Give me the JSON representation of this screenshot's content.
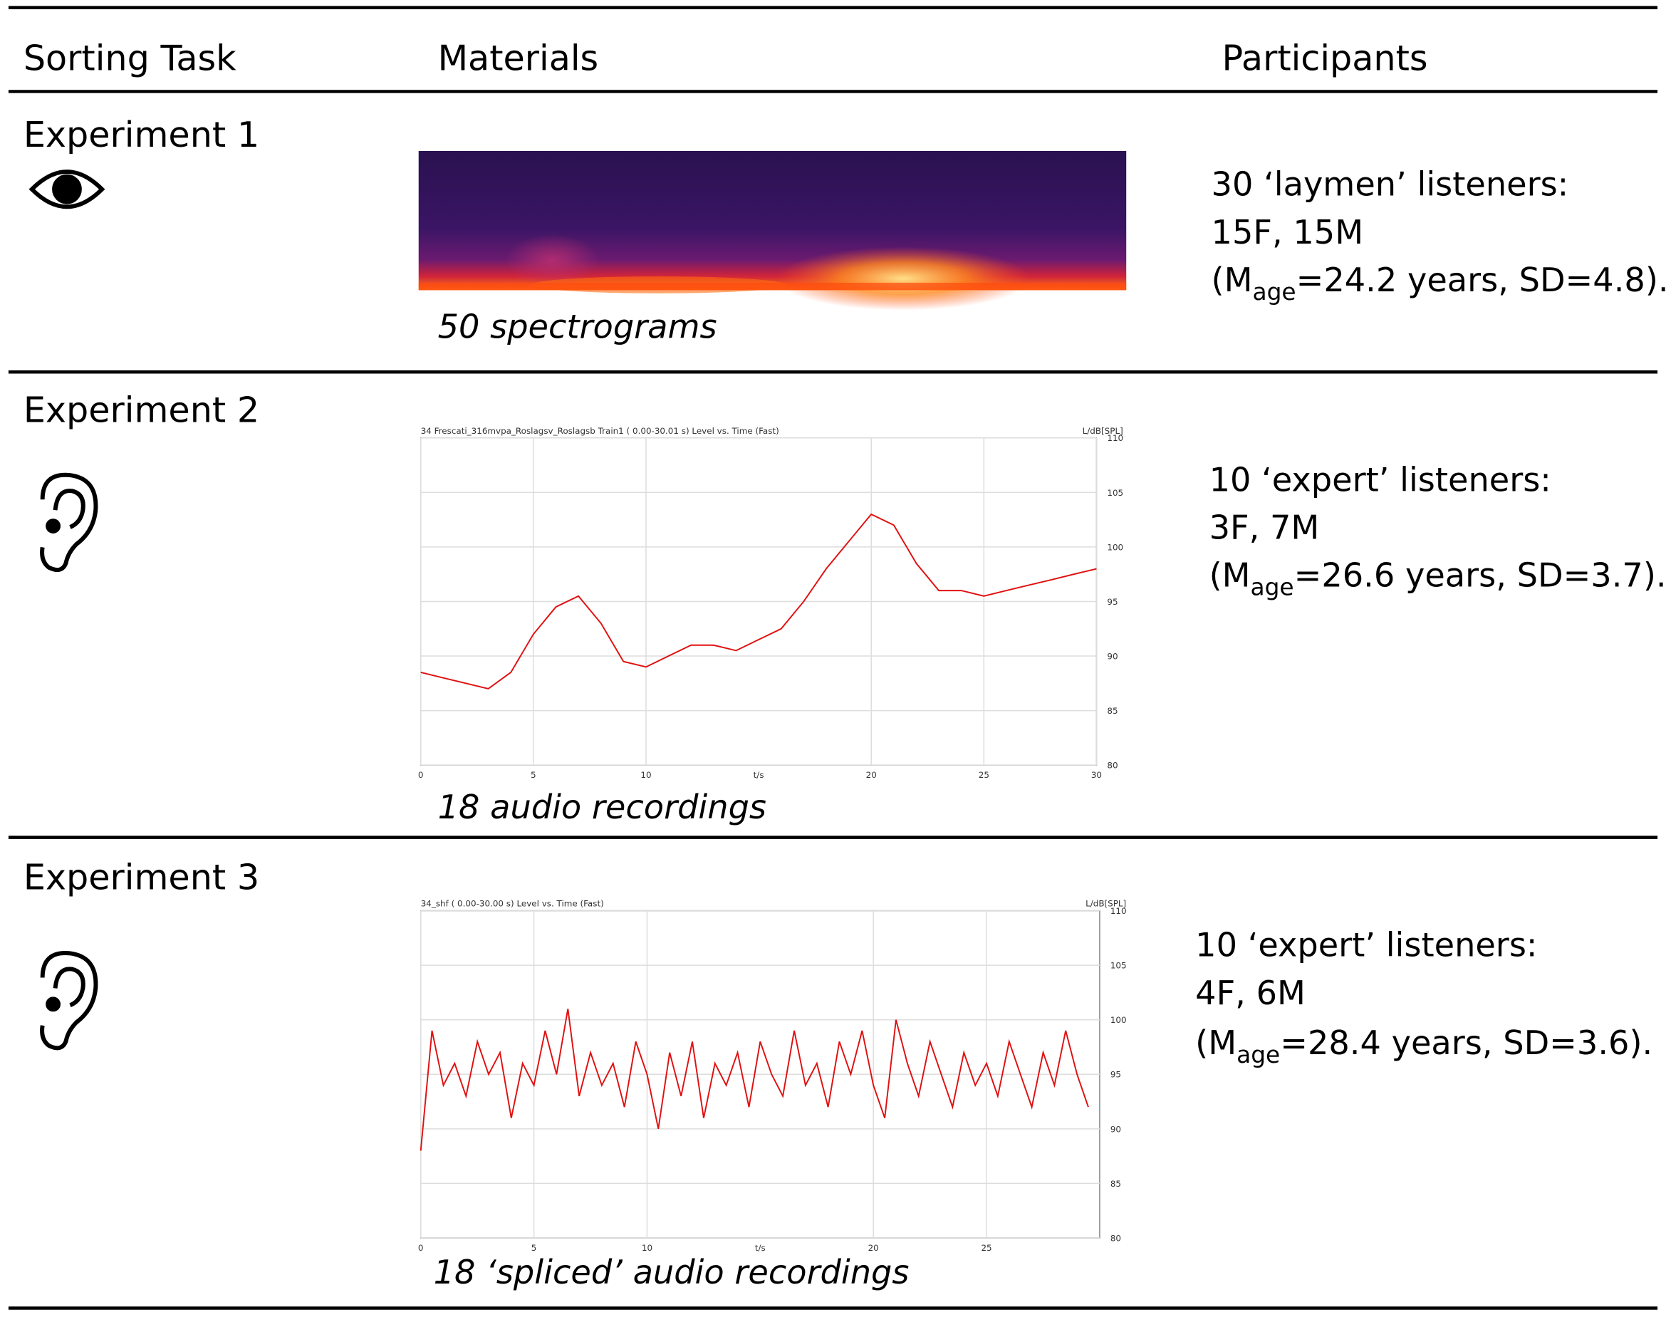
{
  "header": {
    "columns": [
      "Sorting Task",
      "Materials",
      "Participants"
    ]
  },
  "rows": [
    {
      "experiment": "Experiment 1",
      "material_caption": "50 spectrograms",
      "participants": {
        "line1": "30 ‘laymen’ listeners:",
        "line2": "15F, 15M",
        "line3_prefix": "(M",
        "line3_sub": "age",
        "line3_rest": "=24.2 years, SD=4.8)."
      }
    },
    {
      "experiment": "Experiment 2",
      "material_caption": "18 audio recordings",
      "chart": {
        "type": "line",
        "title": "34 Frescati_316mvpa_Roslagsv_Roslagsb Train1 ( 0.00-30.01 s) Level vs. Time (Fast)",
        "y_label": "L/dB[SPL]",
        "x_label": "t/s",
        "color": "#e01010",
        "xlim": [
          0,
          30
        ],
        "xticks": [
          0,
          5,
          10,
          20,
          25,
          30
        ],
        "ylim": [
          80,
          110
        ],
        "yticks": [
          80,
          85,
          90,
          95,
          100,
          105,
          110
        ],
        "x": [
          0,
          1,
          2,
          3,
          4,
          5,
          6,
          7,
          8,
          9,
          10,
          11,
          12,
          13,
          14,
          15,
          16,
          17,
          18,
          19,
          20,
          21,
          22,
          23,
          24,
          25,
          26,
          27,
          28,
          29,
          30
        ],
        "values": [
          88.5,
          88,
          87.5,
          87,
          88.5,
          92,
          94.5,
          95.5,
          93,
          89.5,
          89,
          90,
          91,
          91,
          90.5,
          91.5,
          92.5,
          95,
          98,
          100.5,
          103,
          102,
          98.5,
          96,
          96,
          95.5,
          96,
          96.5,
          97,
          97.5,
          98
        ]
      },
      "participants": {
        "line1": "10 ‘expert’ listeners:",
        "line2": "3F, 7M",
        "line3_prefix": "(M",
        "line3_sub": "age",
        "line3_rest": "=26.6 years, SD=3.7)."
      }
    },
    {
      "experiment": "Experiment 3",
      "material_caption": "18 ‘spliced’ audio recordings",
      "chart": {
        "type": "line",
        "title": "34_shf ( 0.00-30.00 s) Level vs. Time (Fast)",
        "y_label": "L/dB[SPL]",
        "x_label": "t/s",
        "color": "#e01010",
        "xlim": [
          0,
          30
        ],
        "xticks": [
          0,
          5,
          10,
          20,
          25
        ],
        "ylim": [
          80,
          110
        ],
        "yticks": [
          80,
          85,
          90,
          95,
          100,
          105,
          110
        ],
        "x": [
          0,
          0.5,
          1,
          1.5,
          2,
          2.5,
          3,
          3.5,
          4,
          4.5,
          5,
          5.5,
          6,
          6.5,
          7,
          7.5,
          8,
          8.5,
          9,
          9.5,
          10,
          10.5,
          11,
          11.5,
          12,
          12.5,
          13,
          13.5,
          14,
          14.5,
          15,
          15.5,
          16,
          16.5,
          17,
          17.5,
          18,
          18.5,
          19,
          19.5,
          20,
          20.5,
          21,
          21.5,
          22,
          22.5,
          23,
          23.5,
          24,
          24.5,
          25,
          25.5,
          26,
          26.5,
          27,
          27.5,
          28,
          28.5,
          29,
          29.5
        ],
        "values": [
          88,
          99,
          94,
          96,
          93,
          98,
          95,
          97,
          91,
          96,
          94,
          99,
          95,
          101,
          93,
          97,
          94,
          96,
          92,
          98,
          95,
          90,
          97,
          93,
          98,
          91,
          96,
          94,
          97,
          92,
          98,
          95,
          93,
          99,
          94,
          96,
          92,
          98,
          95,
          99,
          94,
          91,
          100,
          96,
          93,
          98,
          95,
          92,
          97,
          94,
          96,
          93,
          98,
          95,
          92,
          97,
          94,
          99,
          95,
          92
        ]
      },
      "participants": {
        "line1": "10 ‘expert’ listeners:",
        "line2": "4F, 6M",
        "line3_prefix": "(M",
        "line3_sub": "age",
        "line3_rest": "=28.4 years, SD=3.6)."
      }
    }
  ]
}
